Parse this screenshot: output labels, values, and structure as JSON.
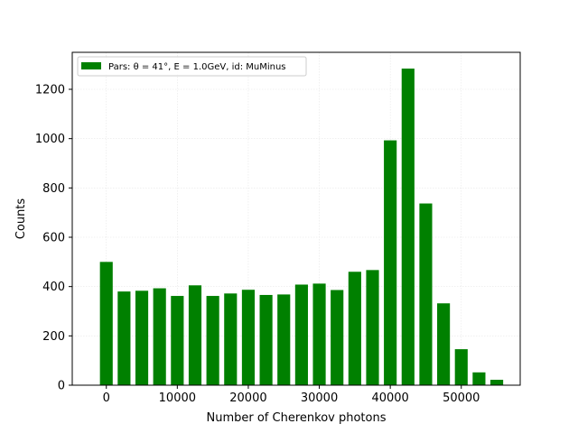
{
  "chart_data": {
    "type": "bar",
    "xlabel": "Number of Cherenkov photons",
    "ylabel": "Counts",
    "xlim": [
      -4800,
      58300
    ],
    "ylim": [
      0,
      1350
    ],
    "xticks": [
      0,
      10000,
      20000,
      30000,
      40000,
      50000
    ],
    "yticks": [
      0,
      200,
      400,
      600,
      800,
      1000,
      1200
    ],
    "grid": true,
    "legend_position": "top-left",
    "bar_width": 1800,
    "bar_color": "#008000",
    "series": [
      {
        "name": "Pars: θ = 41°, E = 1.0GeV, id: MuMinus",
        "x": [
          0,
          2500,
          5000,
          7500,
          10000,
          12500,
          15000,
          17500,
          20000,
          22500,
          25000,
          27500,
          30000,
          32500,
          35000,
          37500,
          40000,
          42500,
          45000,
          47500,
          50000,
          52500,
          55000
        ],
        "values": [
          500,
          380,
          383,
          393,
          362,
          405,
          362,
          372,
          387,
          366,
          368,
          408,
          412,
          386,
          460,
          467,
          993,
          1284,
          737,
          332,
          146,
          52,
          22
        ]
      }
    ]
  }
}
